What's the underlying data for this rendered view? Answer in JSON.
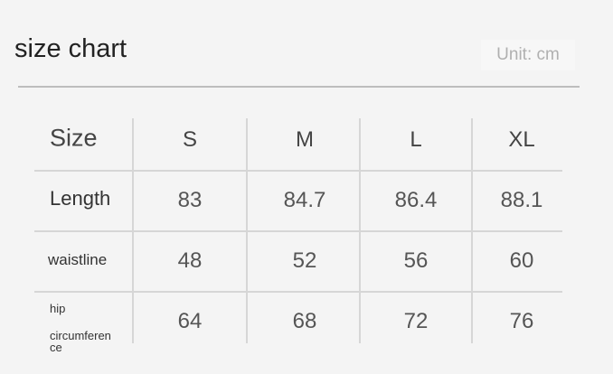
{
  "title": "size chart",
  "unit": "Unit: cm",
  "table": {
    "header_label": "Size",
    "sizes": [
      "S",
      "M",
      "L",
      "XL"
    ],
    "rows": [
      {
        "label": "Length",
        "values": [
          "83",
          "84.7",
          "86.4",
          "88.1"
        ]
      },
      {
        "label": "waistline",
        "values": [
          "48",
          "52",
          "56",
          "60"
        ]
      },
      {
        "label": "hip",
        "label_line2": "circumferen",
        "label_line3": "ce",
        "values": [
          "64",
          "68",
          "72",
          "76"
        ]
      }
    ]
  }
}
